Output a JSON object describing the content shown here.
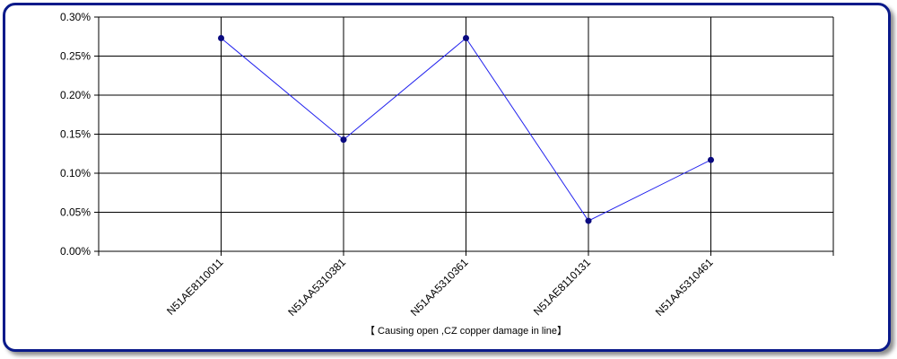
{
  "colors": {
    "frame_border": "#0a1a8a",
    "series_line": "#2222ee",
    "series_marker": "#0a0a80",
    "grid": "#000000"
  },
  "chart_data": {
    "type": "line",
    "title": "",
    "xlabel": "【 Causing open ,CZ copper damage in line】",
    "ylabel": "",
    "categories": [
      "N51AE8110011",
      "N51AA5310381",
      "N51AA5310361",
      "N51AE8110131",
      "N51AA5310461"
    ],
    "series": [
      {
        "values": [
          0.273,
          0.143,
          0.273,
          0.039,
          0.117
        ]
      }
    ],
    "ylim": [
      0,
      0.3
    ],
    "yticks": [
      0.0,
      0.05,
      0.1,
      0.15,
      0.2,
      0.25,
      0.3
    ],
    "ytick_labels": [
      "0.00%",
      "0.05%",
      "0.10%",
      "0.15%",
      "0.20%",
      "0.25%",
      "0.30%"
    ],
    "y_unit": "%",
    "grid": true,
    "legend": "none"
  }
}
